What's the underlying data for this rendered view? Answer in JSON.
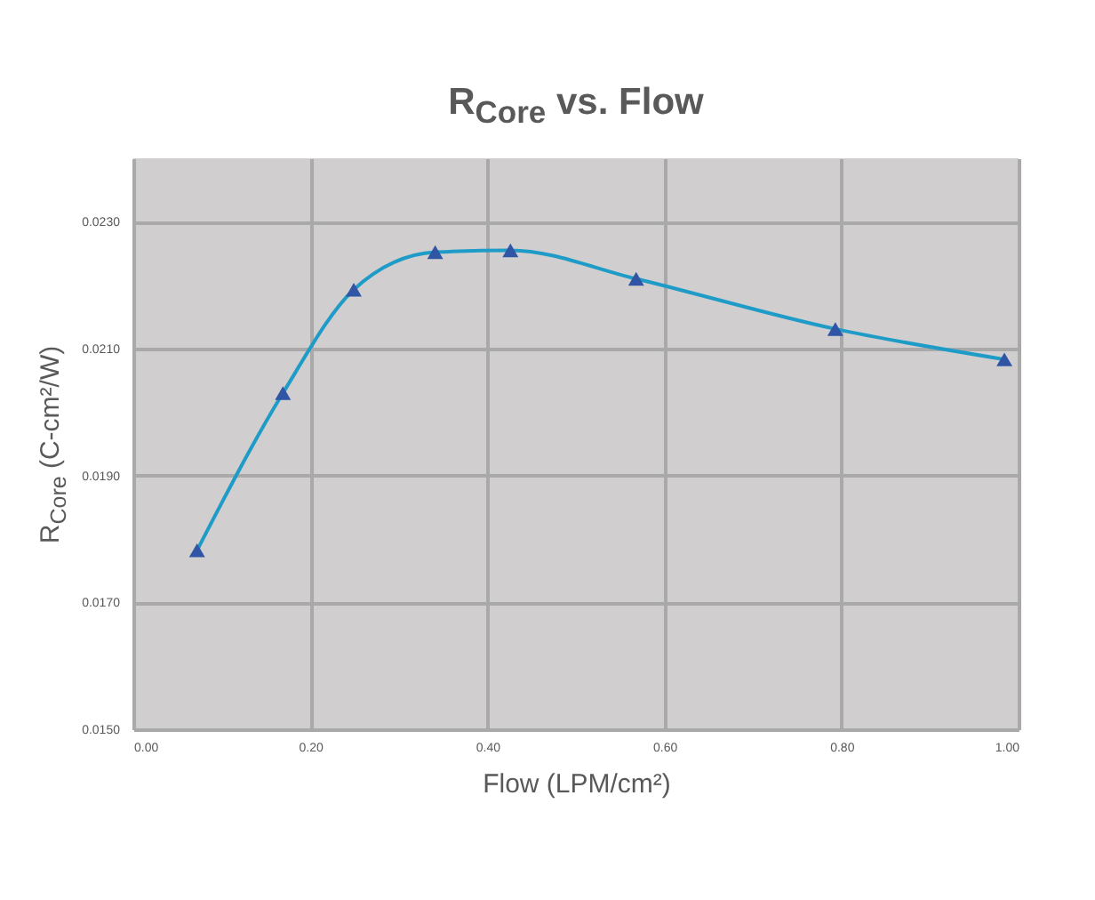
{
  "chart_data": {
    "type": "line",
    "title": "R$_{Core}$ vs. Flow",
    "xlabel": "Flow (LPM/cm²)",
    "ylabel": "R$_{Core}$ (C-cm²/W)",
    "x": [
      0.072,
      0.169,
      0.249,
      0.341,
      0.426,
      0.568,
      0.793,
      0.984
    ],
    "series": [
      {
        "color": "#1f9bc8",
        "values": [
          0.01782,
          0.0203,
          0.02193,
          0.02252,
          0.02255,
          0.0221,
          0.02131,
          0.02083
        ]
      }
    ],
    "xlim": [
      0,
      1
    ],
    "xticks": [
      {
        "value": 0,
        "label": "0.00"
      },
      {
        "value": 0.2,
        "label": "0.20"
      },
      {
        "value": 0.4,
        "label": "0.40"
      },
      {
        "value": 0.6,
        "label": "0.60"
      },
      {
        "value": 0.8,
        "label": "0.80"
      },
      {
        "value": 1,
        "label": "1.00"
      }
    ],
    "ylim": [
      0.015,
      0.024
    ],
    "yticks": [
      {
        "value": 0.015,
        "label": "0.0150"
      },
      {
        "value": 0.017,
        "label": "0.0170"
      },
      {
        "value": 0.019,
        "label": "0.0190"
      },
      {
        "value": 0.021,
        "label": "0.0210"
      },
      {
        "value": 0.023,
        "label": "0.0230"
      }
    ],
    "grid": true,
    "marker": "triangle",
    "line_style": "solid"
  }
}
